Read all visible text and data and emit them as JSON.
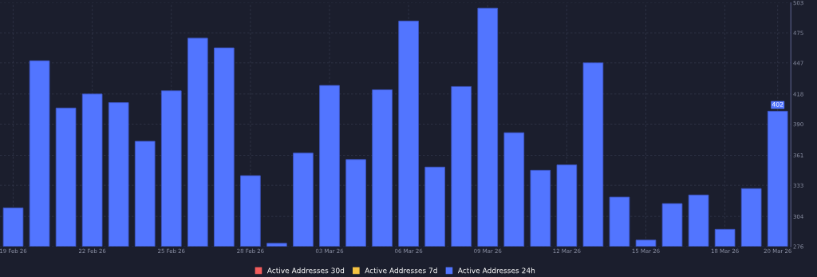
{
  "chart_data": {
    "type": "bar",
    "categories": [
      "19 Feb 26",
      null,
      null,
      "22 Feb 26",
      null,
      null,
      "25 Feb 26",
      null,
      null,
      "28 Feb 26",
      null,
      null,
      "03 Mar 26",
      null,
      null,
      "06 Mar 26",
      null,
      null,
      "09 Mar 26",
      null,
      null,
      "12 Mar 26",
      null,
      null,
      "15 Mar 26",
      null,
      null,
      "18 Mar 26",
      null,
      "20 Mar 26"
    ],
    "series": [
      {
        "name": "Active Addresses 30d",
        "color": "#f25c5c",
        "values": [
          null,
          null,
          null,
          null,
          null,
          null,
          null,
          null,
          null,
          null,
          null,
          null,
          null,
          null,
          null,
          null,
          null,
          null,
          null,
          null,
          null,
          null,
          null,
          null,
          null,
          null,
          null,
          null,
          null,
          null
        ]
      },
      {
        "name": "Active Addresses 7d",
        "color": "#f5c342",
        "values": [
          null,
          null,
          null,
          null,
          null,
          null,
          null,
          null,
          null,
          null,
          null,
          null,
          null,
          null,
          null,
          null,
          null,
          null,
          null,
          null,
          null,
          null,
          null,
          null,
          null,
          null,
          null,
          null,
          null,
          null
        ]
      },
      {
        "name": "Active Addresses 24h",
        "color": "#5275ff",
        "values": [
          312,
          449,
          405,
          418,
          410,
          374,
          421,
          470,
          461,
          342,
          279,
          363,
          426,
          357,
          422,
          486,
          350,
          425,
          498,
          382,
          347,
          352,
          447,
          322,
          282,
          316,
          324,
          292,
          330,
          402
        ],
        "value_labels": [
          null,
          null,
          null,
          null,
          null,
          null,
          null,
          null,
          null,
          null,
          null,
          null,
          null,
          null,
          null,
          null,
          null,
          null,
          null,
          null,
          null,
          null,
          null,
          null,
          null,
          null,
          null,
          null,
          null,
          "402"
        ]
      }
    ],
    "ylim": [
      276,
      503
    ],
    "yticks": [
      276,
      304,
      333,
      361,
      390,
      418,
      447,
      475,
      503
    ],
    "grid": true,
    "legend": "bottom"
  }
}
